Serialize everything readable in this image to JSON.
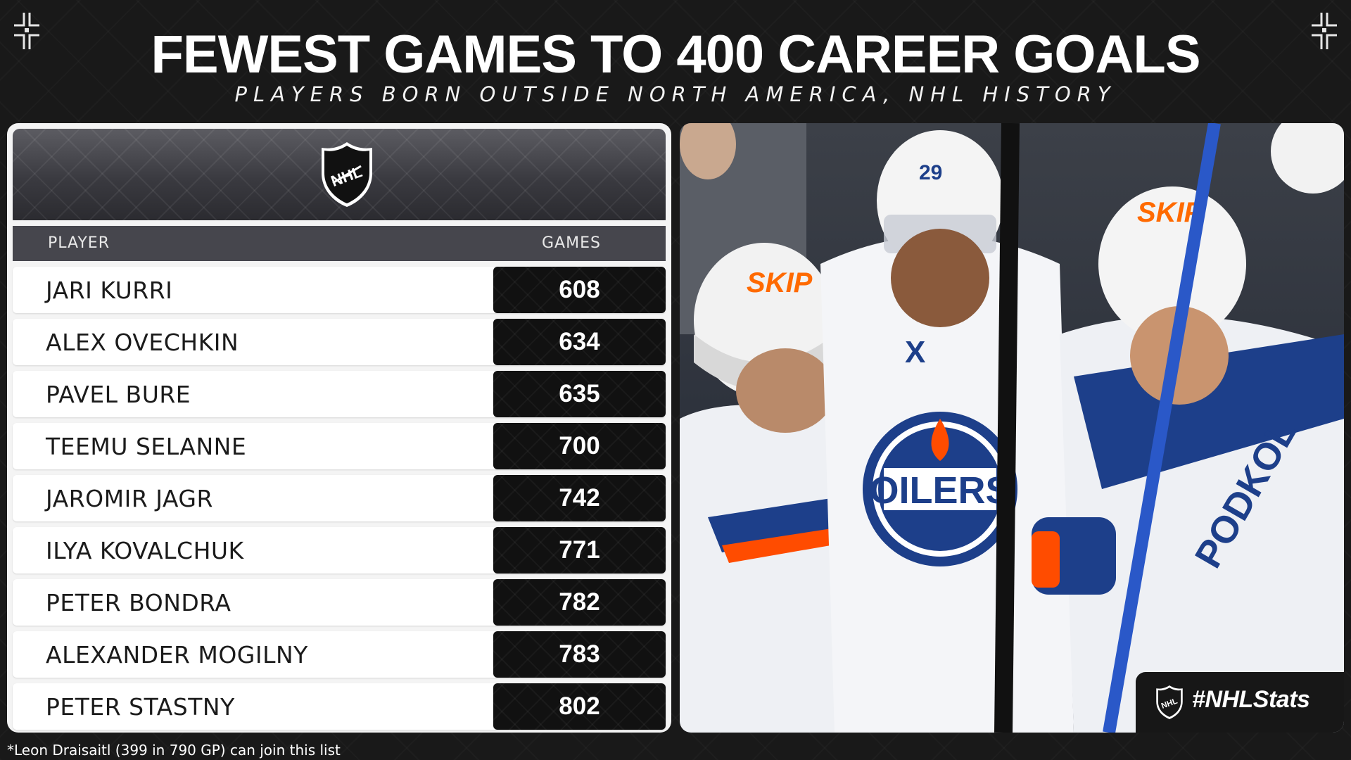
{
  "title": "FEWEST GAMES TO 400 CAREER GOALS",
  "subtitle": "PLAYERS BORN OUTSIDE NORTH AMERICA, NHL HISTORY",
  "table": {
    "header_player": "PLAYER",
    "header_games": "GAMES"
  },
  "chart_data": {
    "type": "table",
    "title": "FEWEST GAMES TO 400 CAREER GOALS",
    "subtitle": "PLAYERS BORN OUTSIDE NORTH AMERICA, NHL HISTORY",
    "columns": [
      "PLAYER",
      "GAMES"
    ],
    "rows": [
      {
        "player": "JARI KURRI",
        "games": "608"
      },
      {
        "player": "ALEX OVECHKIN",
        "games": "634"
      },
      {
        "player": "PAVEL BURE",
        "games": "635"
      },
      {
        "player": "TEEMU SELANNE",
        "games": "700"
      },
      {
        "player": "JAROMIR JAGR",
        "games": "742"
      },
      {
        "player": "ILYA KOVALCHUK",
        "games": "771"
      },
      {
        "player": "PETER BONDRA",
        "games": "782"
      },
      {
        "player": "ALEXANDER MOGILNY",
        "games": "783"
      },
      {
        "player": "PETER STASTNY",
        "games": "802"
      }
    ]
  },
  "hashtag": "#NHLStats",
  "footnote": "*Leon Draisaitl (399 in 790 GP) can join this list",
  "icons": [
    "nhl-logo-icon",
    "corner-crosshair-icon"
  ],
  "colors": {
    "background": "#191919",
    "panel": "#f4f4f4",
    "value_cell": "#111111",
    "oilers_orange": "#ff4c00",
    "oilers_blue": "#041e42"
  }
}
